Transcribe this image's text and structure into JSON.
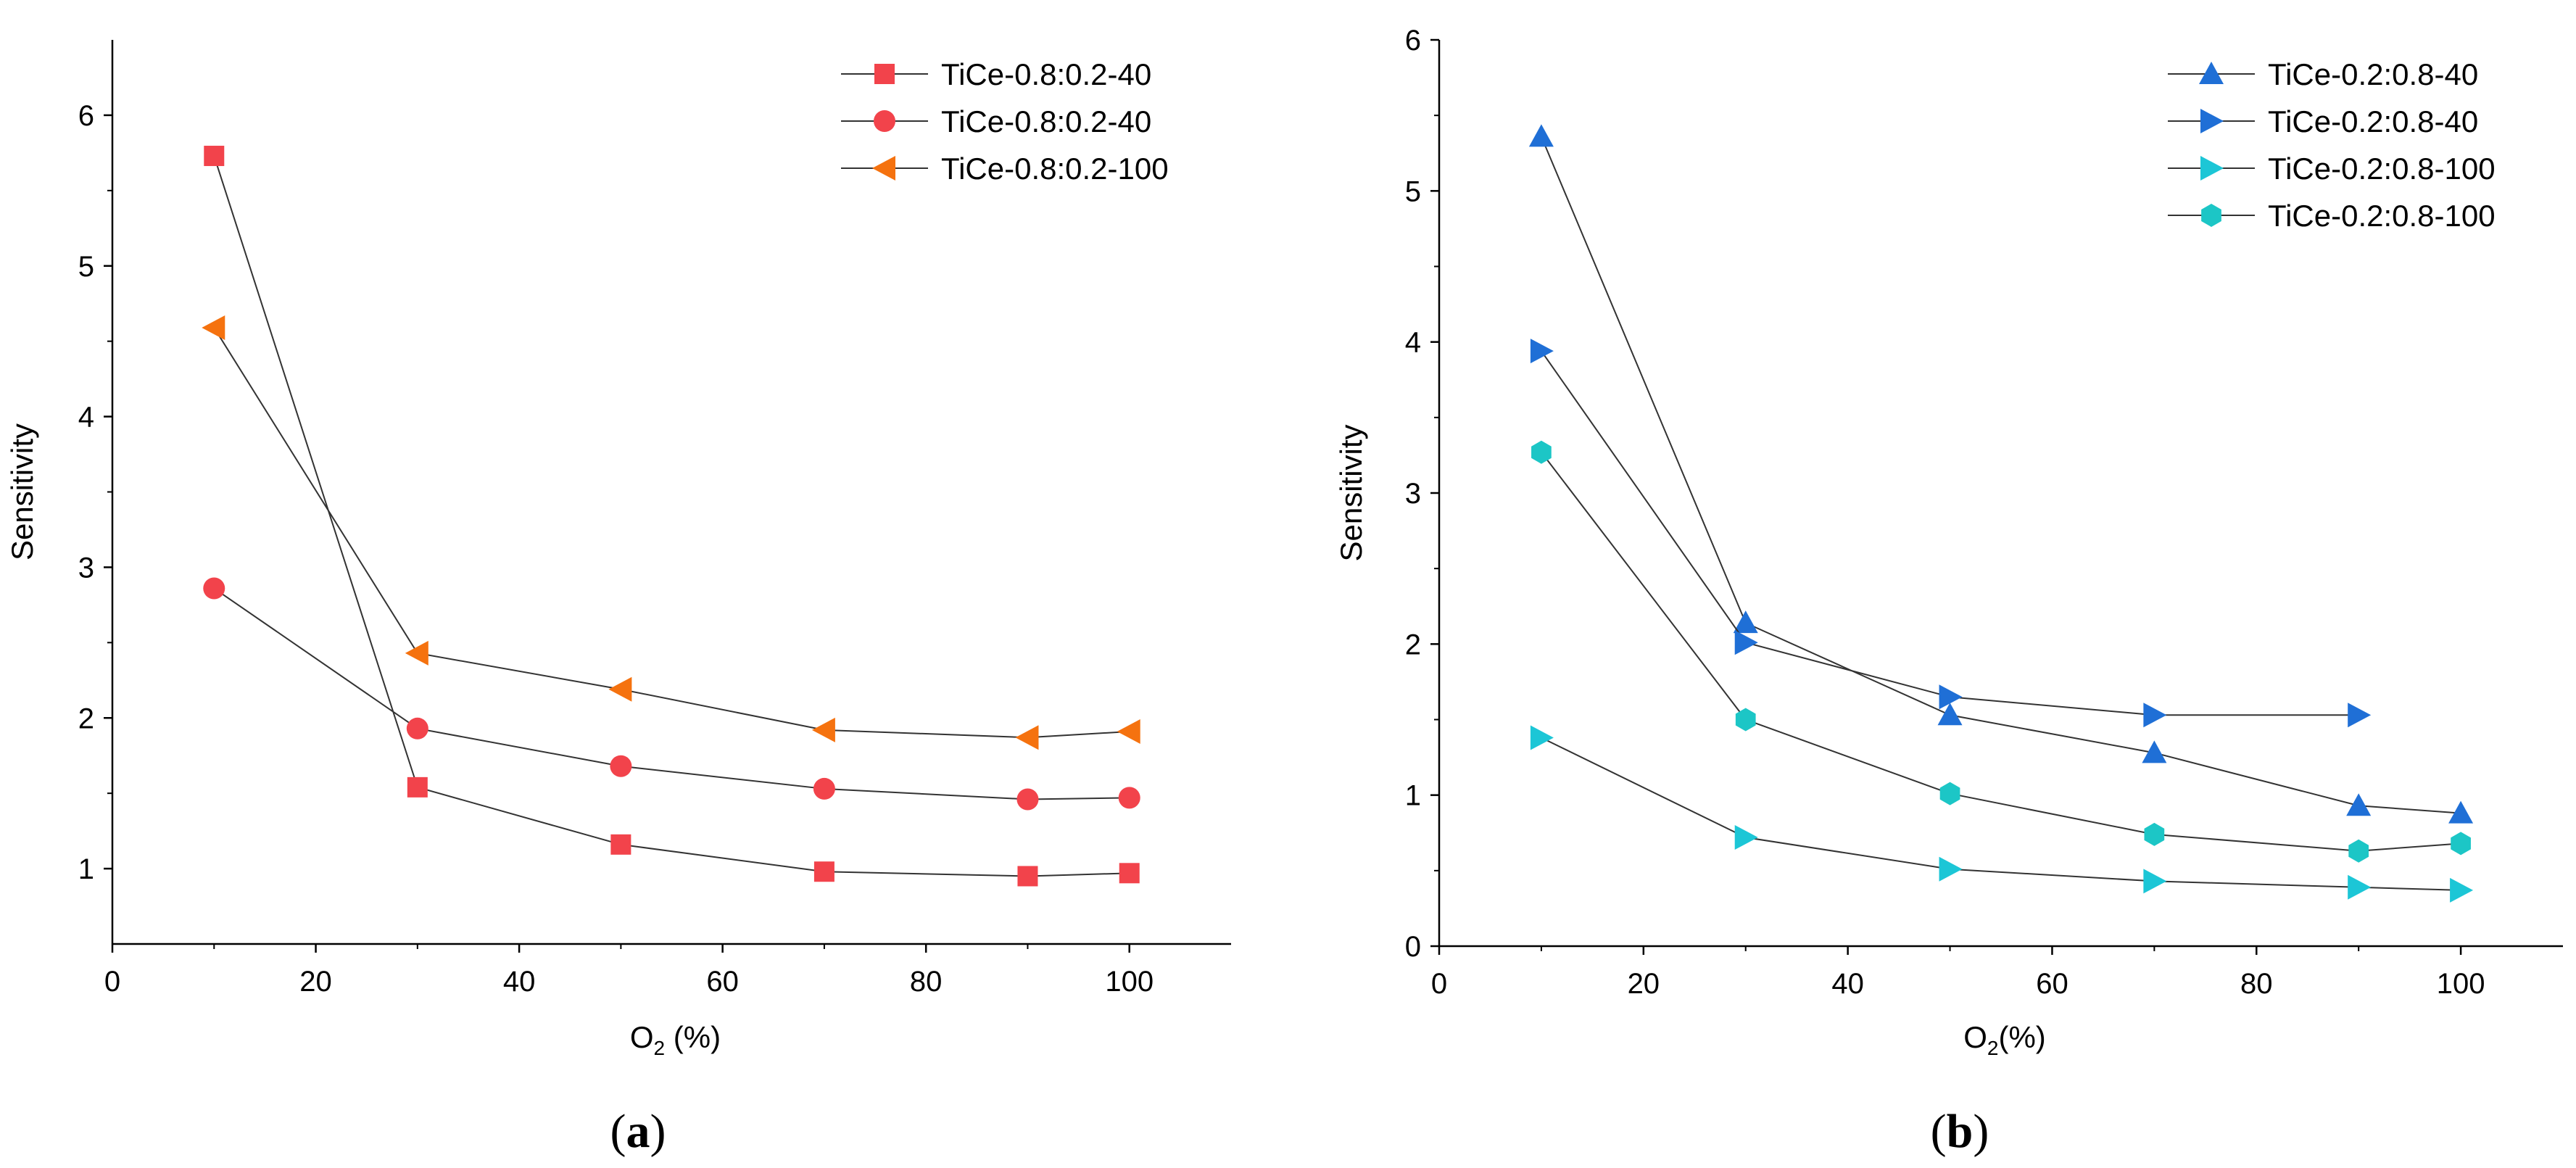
{
  "chart_data": [
    {
      "panel_label": "a",
      "type": "line",
      "xlabel": "O",
      "xlabel_sub": "2",
      "xlabel_suffix": " (%)",
      "ylabel": "Sensitivity",
      "xlim": [
        0,
        110
      ],
      "ylim": [
        0.5,
        6.5
      ],
      "xticks": [
        0,
        20,
        40,
        60,
        80,
        100
      ],
      "yticks": [
        1,
        2,
        3,
        4,
        5,
        6
      ],
      "grid": false,
      "legend_position": "top-right",
      "series": [
        {
          "name": "TiCe-0.8:0.2-40",
          "marker": "square",
          "color": "#f2434b",
          "x": [
            10,
            30,
            50,
            70,
            90,
            100
          ],
          "y": [
            5.73,
            1.54,
            1.16,
            0.98,
            0.95,
            0.97
          ]
        },
        {
          "name": "TiCe-0.8:0.2-40",
          "marker": "circle",
          "color": "#f2434b",
          "x": [
            10,
            30,
            50,
            70,
            90,
            100
          ],
          "y": [
            2.86,
            1.93,
            1.68,
            1.53,
            1.46,
            1.47
          ]
        },
        {
          "name": "TiCe-0.8:0.2-100",
          "marker": "triangle-left",
          "color": "#f5720f",
          "x": [
            10,
            30,
            50,
            70,
            90,
            100
          ],
          "y": [
            4.59,
            2.43,
            2.19,
            1.92,
            1.87,
            1.91
          ]
        }
      ]
    },
    {
      "panel_label": "b",
      "type": "line",
      "xlabel": "O",
      "xlabel_sub": "2",
      "xlabel_suffix": "(%)",
      "ylabel": "Sensitivity",
      "xlim": [
        0,
        110
      ],
      "ylim": [
        0,
        6
      ],
      "xticks": [
        0,
        20,
        40,
        60,
        80,
        100
      ],
      "yticks": [
        0,
        1,
        2,
        3,
        4,
        5,
        6
      ],
      "grid": false,
      "legend_position": "top-right",
      "series": [
        {
          "name": "TiCe-0.2:0.8-40",
          "marker": "triangle-up",
          "color": "#1f6fd6",
          "x": [
            10,
            30,
            50,
            70,
            90,
            100
          ],
          "y": [
            5.36,
            2.14,
            1.53,
            1.28,
            0.93,
            0.88
          ]
        },
        {
          "name": "TiCe-0.2:0.8-40",
          "marker": "triangle-right",
          "color": "#1f6fd6",
          "x": [
            10,
            30,
            50,
            70,
            90
          ],
          "y": [
            3.94,
            2.01,
            1.65,
            1.53,
            1.53
          ]
        },
        {
          "name": "TiCe-0.2:0.8-100",
          "marker": "triangle-right",
          "color": "#1cc6d6",
          "x": [
            10,
            30,
            50,
            70,
            90,
            100
          ],
          "y": [
            1.38,
            0.72,
            0.51,
            0.43,
            0.39,
            0.37
          ]
        },
        {
          "name": "TiCe-0.2:0.8-100",
          "marker": "hexagon",
          "color": "#1cc6c6",
          "x": [
            10,
            30,
            50,
            70,
            90,
            100
          ],
          "y": [
            3.27,
            1.5,
            1.01,
            0.74,
            0.63,
            0.68
          ]
        }
      ]
    }
  ]
}
